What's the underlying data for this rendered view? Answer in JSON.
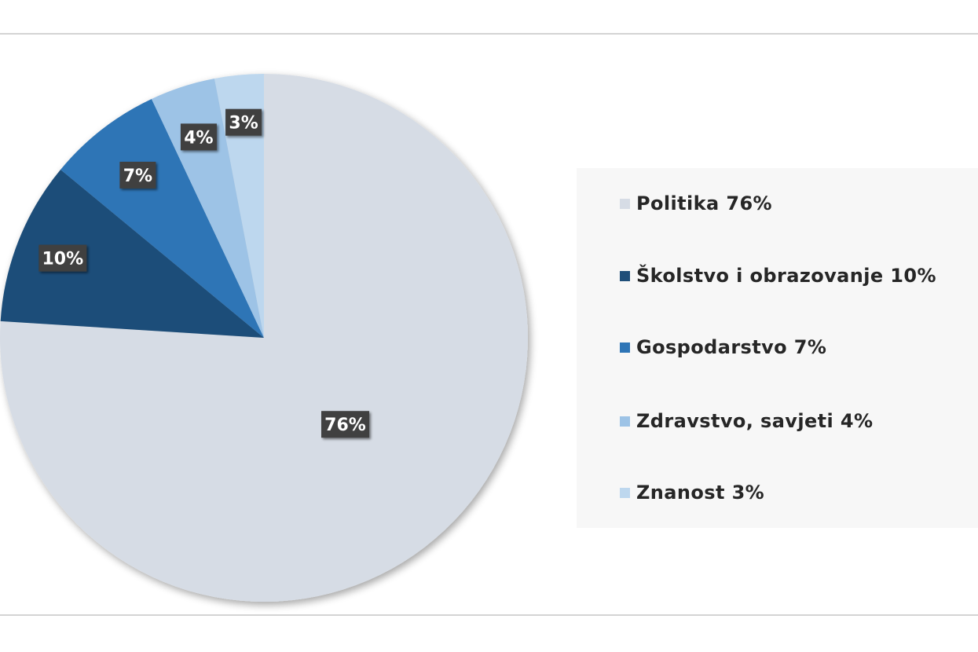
{
  "chart_data": {
    "type": "pie",
    "categories": [
      "Politika",
      "Školstvo i obrazovanje",
      "Gospodarstvo",
      "Zdravstvo, savjeti",
      "Znanost"
    ],
    "values": [
      76,
      10,
      7,
      4,
      3
    ],
    "data_labels": [
      "76%",
      "10%",
      "7%",
      "4%",
      "3%"
    ],
    "legend_entries": [
      "Politika  76%",
      "Školstvo i obrazovanje  10%",
      "Gospodarstvo  7%",
      "Zdravstvo, savjeti  4%",
      "Znanost  3%"
    ],
    "colors": [
      "#d6dce5",
      "#1f4e79",
      "#2e75b6",
      "#9dc3e6",
      "#bdd7ee"
    ],
    "legend_position": "right",
    "start": "top, clockwise"
  }
}
